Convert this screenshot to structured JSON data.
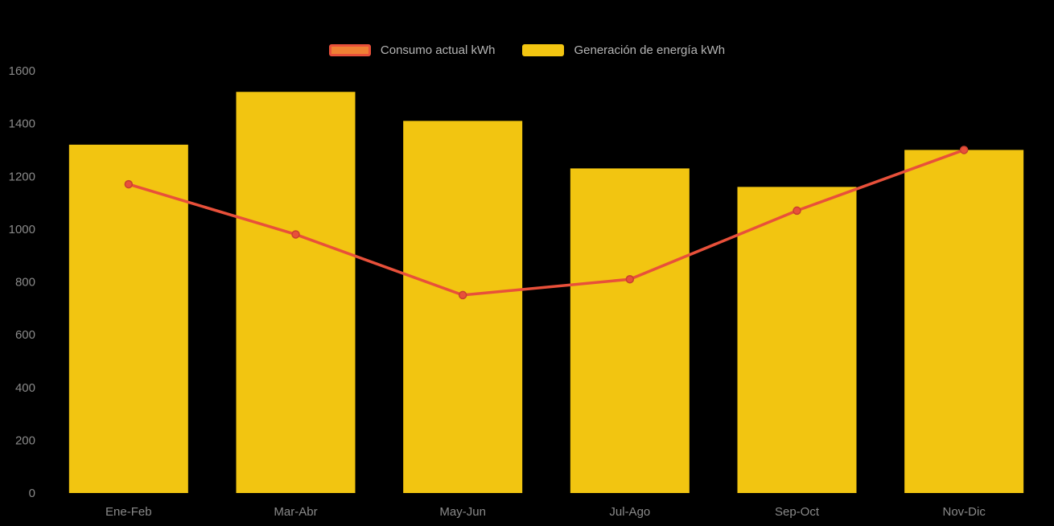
{
  "chart_data": {
    "type": "bar",
    "subtype": "bar-and-line-combo",
    "title": "",
    "categories": [
      "Ene-Feb",
      "Mar-Abr",
      "May-Jun",
      "Jul-Ago",
      "Sep-Oct",
      "Nov-Dic"
    ],
    "series": [
      {
        "name": "Consumo actual kWh",
        "type": "line",
        "values": [
          1170,
          980,
          750,
          810,
          1070,
          1300
        ],
        "color": "#E8503A",
        "swatch_fill": "#EF8034",
        "swatch_border": "#E8503A"
      },
      {
        "name": "Generación de energía kWh",
        "type": "bar",
        "values": [
          1320,
          1520,
          1410,
          1230,
          1160,
          1300
        ],
        "color": "#F2C511"
      }
    ],
    "xlabel": "",
    "ylabel": "",
    "ylim": [
      0,
      1600
    ],
    "y_tick_step": 200,
    "y_ticks": [
      "0",
      "200",
      "400",
      "600",
      "800",
      "1000",
      "1200",
      "1400",
      "1600"
    ],
    "grid": false,
    "legend_position": "top",
    "background": "#000000",
    "tick_color": "#8A8A8A",
    "legend_text_color": "#B5B5B5"
  }
}
